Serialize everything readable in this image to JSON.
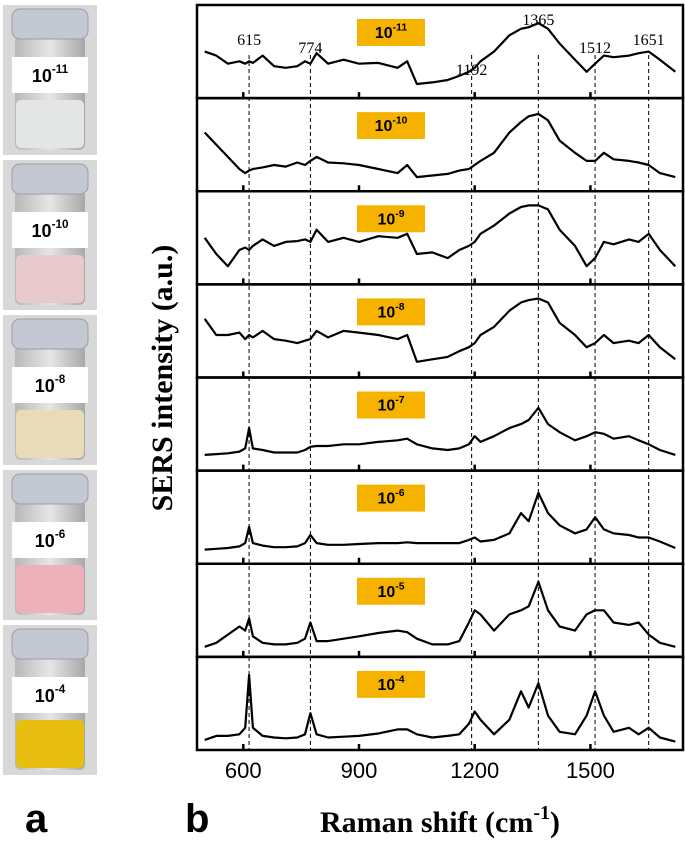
{
  "panel_a": {
    "letter": "a",
    "vials": [
      {
        "base": "10",
        "exponent": "-11"
      },
      {
        "base": "10",
        "exponent": "-10"
      },
      {
        "base": "10",
        "exponent": "-8"
      },
      {
        "base": "10",
        "exponent": "-6"
      },
      {
        "base": "10",
        "exponent": "-4"
      }
    ]
  },
  "chart_data": {
    "type": "line",
    "letter": "b",
    "xlabel": {
      "text": "Raman shift (cm",
      "sup": "-1",
      "tail": ")"
    },
    "ylabel": "SERS intensity (a.u.)",
    "color": "#000000",
    "label_color": "#f5b300",
    "xlim": [
      480,
      1740
    ],
    "xticks": [
      600,
      900,
      1200,
      1500
    ],
    "ylim": [
      0,
      10
    ],
    "peaks": [
      615,
      774,
      1192,
      1365,
      1512,
      1651
    ],
    "x": [
      500,
      530,
      560,
      590,
      605,
      615,
      625,
      650,
      680,
      710,
      740,
      760,
      774,
      790,
      820,
      860,
      900,
      950,
      1000,
      1025,
      1050,
      1090,
      1130,
      1160,
      1185,
      1200,
      1215,
      1250,
      1290,
      1320,
      1340,
      1365,
      1390,
      1420,
      1460,
      1490,
      1512,
      1535,
      1560,
      1600,
      1625,
      1651,
      1680,
      1720
    ],
    "series": [
      {
        "name": "10",
        "exponent": "-11",
        "values": [
          5,
          4.5,
          3.5,
          3.8,
          3.5,
          3.8,
          3.6,
          4.5,
          3.2,
          3,
          3.2,
          3.8,
          3.5,
          4.8,
          3.5,
          4,
          3.5,
          3.6,
          3,
          3.8,
          1,
          1.2,
          1.5,
          2,
          2.5,
          3,
          3.8,
          5,
          7,
          7.8,
          8,
          8.5,
          7.8,
          6,
          4,
          2.5,
          3.5,
          4.5,
          4.3,
          4.5,
          4.8,
          5,
          4,
          2.5
        ]
      },
      {
        "name": "10",
        "exponent": "-10",
        "values": [
          6.5,
          5,
          3.5,
          2,
          1.5,
          1.8,
          2,
          2.2,
          2.5,
          2.3,
          2.8,
          2.5,
          3,
          3.5,
          2.8,
          2.7,
          2.5,
          2,
          1.5,
          2.5,
          1,
          1.2,
          1.4,
          1.8,
          2,
          2.5,
          3,
          4,
          6.5,
          7.8,
          8.5,
          8.8,
          8,
          5.5,
          4,
          3,
          3,
          4,
          3.2,
          3,
          2.8,
          2.5,
          1.5,
          1
        ]
      },
      {
        "name": "10",
        "exponent": "-9",
        "values": [
          5,
          3,
          1.5,
          3.5,
          3.8,
          3.5,
          4,
          4.8,
          4,
          4.5,
          4.6,
          4.8,
          4.5,
          6,
          4.5,
          5,
          4.5,
          5.2,
          5,
          5.5,
          3,
          3.2,
          2.5,
          3.5,
          4,
          4.5,
          5.5,
          6.5,
          8,
          8.8,
          9,
          9,
          8.5,
          6,
          4,
          1.5,
          2.5,
          4.5,
          4.2,
          4.8,
          4.5,
          5.5,
          3.5,
          1.5
        ]
      },
      {
        "name": "10",
        "exponent": "-8",
        "values": [
          6.5,
          4.5,
          4.5,
          4.8,
          4,
          4.5,
          4.2,
          5,
          4,
          3.8,
          3.5,
          3.8,
          4,
          5,
          4.2,
          5,
          4.8,
          4.5,
          4,
          4.5,
          1.2,
          1.5,
          1.8,
          2.5,
          3,
          3.5,
          4.5,
          5.5,
          7.5,
          8.5,
          8.8,
          9,
          8.5,
          6,
          4.5,
          3,
          3.5,
          4.5,
          3.5,
          3.8,
          3.5,
          4.5,
          3,
          1.5
        ]
      },
      {
        "name": "10",
        "exponent": "-7",
        "values": [
          1.2,
          1.3,
          1.4,
          1.6,
          2,
          4.5,
          2,
          1.8,
          1.5,
          1.5,
          1.5,
          1.8,
          2.2,
          2.3,
          2.3,
          2.5,
          2.5,
          2.8,
          3,
          3.2,
          2.5,
          2,
          1.8,
          2,
          2.5,
          3.5,
          2.8,
          3.5,
          4.5,
          5,
          5.5,
          7,
          5,
          4,
          3,
          3.5,
          4,
          3.8,
          3.2,
          3.5,
          3,
          2.5,
          1.8,
          1.2
        ]
      },
      {
        "name": "10",
        "exponent": "-6",
        "values": [
          1,
          1.1,
          1.2,
          1.4,
          1.8,
          3.8,
          1.8,
          1.5,
          1.3,
          1.3,
          1.4,
          1.8,
          2.8,
          1.8,
          1.6,
          1.6,
          1.7,
          1.8,
          1.8,
          1.9,
          1.8,
          1.8,
          1.8,
          1.8,
          2.2,
          2.5,
          2,
          2.2,
          3,
          5.5,
          4.5,
          8,
          5.5,
          4,
          3,
          3.5,
          5,
          3.5,
          3,
          2.8,
          2.5,
          2.5,
          2,
          1.2
        ]
      },
      {
        "name": "10",
        "exponent": "-5",
        "values": [
          0.5,
          1,
          2,
          3,
          2.5,
          4,
          1.8,
          1,
          0.8,
          0.8,
          1,
          1.5,
          3.5,
          1.2,
          1.2,
          1.5,
          1.8,
          2.2,
          2.5,
          2.3,
          1.5,
          0.8,
          0.8,
          1.2,
          3.5,
          5,
          4.5,
          2.5,
          4.5,
          5,
          5.5,
          8.5,
          5,
          3,
          2.5,
          4.5,
          5,
          5,
          3.5,
          3.2,
          3.5,
          2,
          1,
          0.5
        ]
      },
      {
        "name": "10",
        "exponent": "-4",
        "values": [
          0.5,
          1,
          1,
          1.2,
          2,
          8.5,
          2,
          1,
          0.8,
          0.7,
          0.8,
          1.2,
          3.8,
          1.2,
          0.8,
          0.9,
          1,
          1.3,
          1.8,
          1.8,
          1.2,
          0.8,
          1,
          1.2,
          2.5,
          4,
          3,
          1.2,
          3,
          6.5,
          4.5,
          7.5,
          3.5,
          1.5,
          1.2,
          3.5,
          6.5,
          3.5,
          1.5,
          2,
          1.2,
          2,
          0.8,
          0.3
        ]
      }
    ]
  }
}
